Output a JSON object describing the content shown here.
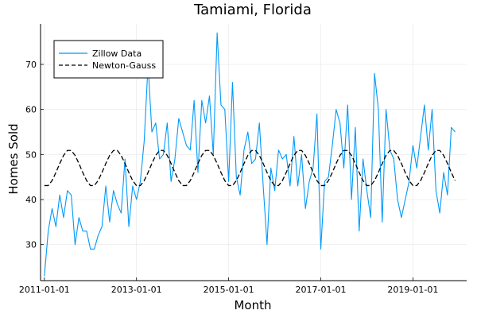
{
  "chart_data": {
    "type": "line",
    "title": "Tamiami, Florida",
    "xlabel": "Month",
    "ylabel": "Homes Sold",
    "x_range": [
      "2010-12-01",
      "2020-03-01"
    ],
    "ylim": [
      22,
      79
    ],
    "x_ticks": [
      "2011-01-01",
      "2013-01-01",
      "2015-01-01",
      "2017-01-01",
      "2019-01-01"
    ],
    "y_ticks": [
      30,
      40,
      50,
      60,
      70
    ],
    "grid": true,
    "legend_position": "top-left",
    "series": [
      {
        "name": "Zillow Data",
        "color": "#009af9",
        "style": "solid",
        "x": [
          "2011-01-01",
          "2011-02-01",
          "2011-03-01",
          "2011-04-01",
          "2011-05-01",
          "2011-06-01",
          "2011-07-01",
          "2011-08-01",
          "2011-09-01",
          "2011-10-01",
          "2011-11-01",
          "2011-12-01",
          "2012-01-01",
          "2012-02-01",
          "2012-03-01",
          "2012-04-01",
          "2012-05-01",
          "2012-06-01",
          "2012-07-01",
          "2012-08-01",
          "2012-09-01",
          "2012-10-01",
          "2012-11-01",
          "2012-12-01",
          "2013-01-01",
          "2013-02-01",
          "2013-03-01",
          "2013-04-01",
          "2013-05-01",
          "2013-06-01",
          "2013-07-01",
          "2013-08-01",
          "2013-09-01",
          "2013-10-01",
          "2013-11-01",
          "2013-12-01",
          "2014-01-01",
          "2014-02-01",
          "2014-03-01",
          "2014-04-01",
          "2014-05-01",
          "2014-06-01",
          "2014-07-01",
          "2014-08-01",
          "2014-09-01",
          "2014-10-01",
          "2014-11-01",
          "2014-12-01",
          "2015-01-01",
          "2015-02-01",
          "2015-03-01",
          "2015-04-01",
          "2015-05-01",
          "2015-06-01",
          "2015-07-01",
          "2015-08-01",
          "2015-09-01",
          "2015-10-01",
          "2015-11-01",
          "2015-12-01",
          "2016-01-01",
          "2016-02-01",
          "2016-03-01",
          "2016-04-01",
          "2016-05-01",
          "2016-06-01",
          "2016-07-01",
          "2016-08-01",
          "2016-09-01",
          "2016-10-01",
          "2016-11-01",
          "2016-12-01",
          "2017-01-01",
          "2017-02-01",
          "2017-03-01",
          "2017-04-01",
          "2017-05-01",
          "2017-06-01",
          "2017-07-01",
          "2017-08-01",
          "2017-09-01",
          "2017-10-01",
          "2017-11-01",
          "2017-12-01",
          "2018-01-01",
          "2018-02-01",
          "2018-03-01",
          "2018-04-01",
          "2018-05-01",
          "2018-06-01",
          "2018-07-01",
          "2018-08-01",
          "2018-09-01",
          "2018-10-01",
          "2018-11-01",
          "2018-12-01",
          "2019-01-01",
          "2019-02-01",
          "2019-03-01",
          "2019-04-01",
          "2019-05-01",
          "2019-06-01",
          "2019-07-01",
          "2019-08-01",
          "2019-09-01",
          "2019-10-01",
          "2019-11-01",
          "2019-12-01"
        ],
        "values": [
          23,
          33,
          38,
          34,
          41,
          36,
          42,
          41,
          30,
          36,
          33,
          33,
          29,
          29,
          32,
          34,
          43,
          35,
          42,
          39,
          37,
          49,
          34,
          43,
          40,
          44,
          53,
          70,
          55,
          57,
          49,
          50,
          57,
          44,
          49,
          58,
          55,
          52,
          51,
          62,
          46,
          62,
          57,
          63,
          50,
          77,
          61,
          60,
          44,
          66,
          45,
          41,
          51,
          55,
          48,
          49,
          57,
          43,
          30,
          47,
          42,
          51,
          49,
          50,
          43,
          54,
          43,
          50,
          38,
          44,
          47,
          59,
          29,
          44,
          45,
          52,
          60,
          57,
          47,
          61,
          40,
          56,
          33,
          49,
          42,
          36,
          68,
          60,
          35,
          60,
          51,
          49,
          40,
          36,
          40,
          44,
          52,
          47,
          54,
          61,
          51,
          60,
          42,
          37,
          46,
          41,
          56,
          55
        ]
      },
      {
        "name": "Newton-Gauss",
        "color": "#000000",
        "style": "dashed",
        "model": {
          "mean": 47,
          "amplitude": 4,
          "period_months": 12,
          "peak_month_offset": 6.5
        },
        "x": [],
        "values": []
      }
    ]
  }
}
